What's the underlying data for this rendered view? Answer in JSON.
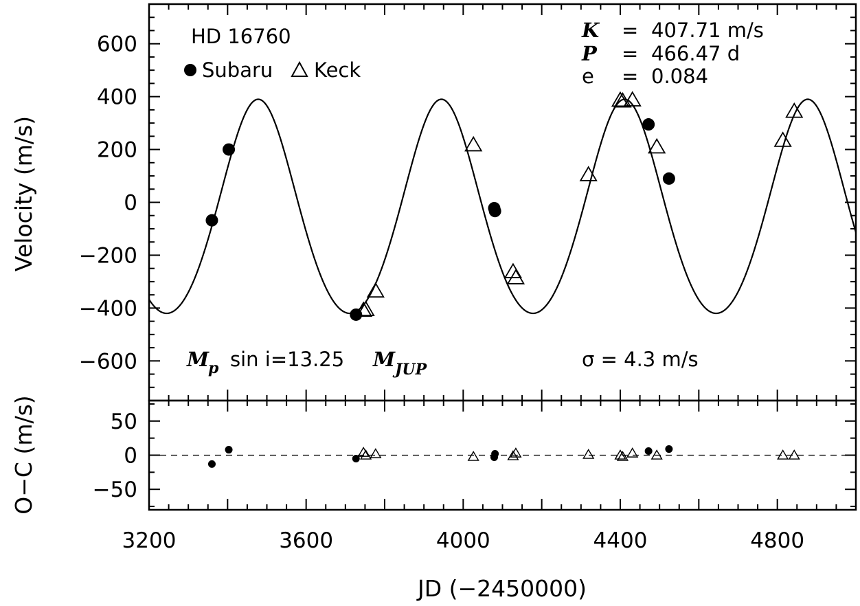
{
  "chart_data": [
    {
      "type": "scatter",
      "panel": "velocity",
      "xlabel": "JD (−2450000)",
      "ylabel": "Velocity (m/s)",
      "xlim": [
        3200,
        5000
      ],
      "ylim": [
        -750,
        750
      ],
      "x_ticks": [
        "3200",
        "3600",
        "4000",
        "4400",
        "4800"
      ],
      "y_ticks": [
        "−600",
        "−400",
        "−200",
        "0",
        "200",
        "400",
        "600"
      ],
      "y_tick_values": [
        -600,
        -400,
        -200,
        0,
        200,
        400,
        600
      ],
      "x_tick_values": [
        3200,
        3600,
        4000,
        4400,
        4800
      ],
      "grid": false,
      "star": "HD 16760",
      "legend": [
        {
          "name": "Subaru",
          "marker": "filled-circle"
        },
        {
          "name": "Keck",
          "marker": "open-triangle"
        }
      ],
      "annotations": {
        "K_sym": "K",
        "K_eq": "=",
        "K_val": "407.71 m/s",
        "P_sym": "P",
        "P_eq": "=",
        "P_val": "466.47 d",
        "e_sym": "e",
        "e_eq": "=",
        "e_val": "0.084",
        "mass_sym": "M",
        "mass_sub": "p",
        "mass_text": "sin i=13.25",
        "mass_unit": "M",
        "mass_unit_sub": "JUP",
        "sigma": "σ = 4.3 m/s"
      },
      "model": {
        "K": 407.71,
        "P": 466.47,
        "e": 0.084,
        "min_velocity": -420,
        "max_velocity": 390,
        "first_peak_x": 3478
      },
      "series": [
        {
          "name": "Subaru",
          "marker": "filled-circle",
          "points": [
            {
              "x": 3360,
              "y": -68
            },
            {
              "x": 3403,
              "y": 200
            },
            {
              "x": 3727,
              "y": -425
            },
            {
              "x": 4079,
              "y": -22
            },
            {
              "x": 4081,
              "y": -33
            },
            {
              "x": 4472,
              "y": 295
            },
            {
              "x": 4524,
              "y": 90
            }
          ]
        },
        {
          "name": "Keck",
          "marker": "open-triangle",
          "points": [
            {
              "x": 3746,
              "y": -408
            },
            {
              "x": 3752,
              "y": -405
            },
            {
              "x": 3777,
              "y": -335
            },
            {
              "x": 4026,
              "y": 218
            },
            {
              "x": 4127,
              "y": -262
            },
            {
              "x": 4134,
              "y": -285
            },
            {
              "x": 4319,
              "y": 105
            },
            {
              "x": 4400,
              "y": 387
            },
            {
              "x": 4406,
              "y": 384
            },
            {
              "x": 4431,
              "y": 388
            },
            {
              "x": 4493,
              "y": 210
            },
            {
              "x": 4814,
              "y": 235
            },
            {
              "x": 4843,
              "y": 345
            }
          ]
        }
      ]
    },
    {
      "type": "scatter",
      "panel": "residuals",
      "ylabel": "O−C (m/s)",
      "xlim": [
        3200,
        5000
      ],
      "ylim": [
        -80,
        80
      ],
      "y_ticks": [
        "−50",
        "0",
        "50"
      ],
      "y_tick_values": [
        -50,
        0,
        50
      ],
      "zero_line": "dashed",
      "series": [
        {
          "name": "Subaru",
          "marker": "filled-circle",
          "points": [
            {
              "x": 3360,
              "y": -13
            },
            {
              "x": 3403,
              "y": 8
            },
            {
              "x": 3727,
              "y": -5
            },
            {
              "x": 4079,
              "y": -3
            },
            {
              "x": 4081,
              "y": 2
            },
            {
              "x": 4472,
              "y": 6
            },
            {
              "x": 4524,
              "y": 9
            }
          ]
        },
        {
          "name": "Keck",
          "marker": "open-triangle",
          "points": [
            {
              "x": 3746,
              "y": 4
            },
            {
              "x": 3752,
              "y": 0
            },
            {
              "x": 3777,
              "y": 2
            },
            {
              "x": 4026,
              "y": -2
            },
            {
              "x": 4127,
              "y": -1
            },
            {
              "x": 4134,
              "y": 3
            },
            {
              "x": 4319,
              "y": 1
            },
            {
              "x": 4400,
              "y": 0
            },
            {
              "x": 4406,
              "y": -2
            },
            {
              "x": 4431,
              "y": 3
            },
            {
              "x": 4493,
              "y": 0
            },
            {
              "x": 4814,
              "y": 0
            },
            {
              "x": 4843,
              "y": 0
            }
          ]
        }
      ]
    }
  ]
}
